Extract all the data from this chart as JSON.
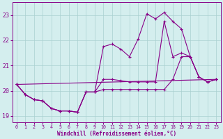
{
  "bg_color": "#d4eeee",
  "grid_color": "#aad0d0",
  "line_color": "#880088",
  "xlabel": "Windchill (Refroidissement éolien,°C)",
  "ylim": [
    18.75,
    23.5
  ],
  "xlim": [
    -0.5,
    23.5
  ],
  "yticks": [
    19,
    20,
    21,
    22,
    23
  ],
  "xticks": [
    0,
    1,
    2,
    3,
    4,
    5,
    6,
    7,
    8,
    9,
    10,
    11,
    12,
    13,
    14,
    15,
    16,
    17,
    18,
    19,
    20,
    21,
    22,
    23
  ],
  "line1_x": [
    0,
    1,
    2,
    3,
    4,
    5,
    6,
    7,
    8,
    9,
    10,
    11,
    12,
    13,
    14,
    15,
    16,
    17,
    18,
    19,
    20,
    21,
    22,
    23
  ],
  "line1_y": [
    20.25,
    19.85,
    19.65,
    19.6,
    19.3,
    19.2,
    19.2,
    19.15,
    19.95,
    19.95,
    21.75,
    21.85,
    21.65,
    21.35,
    22.05,
    23.05,
    22.85,
    23.1,
    22.75,
    22.45,
    21.35,
    20.55,
    20.35,
    20.45
  ],
  "line2_x": [
    0,
    1,
    2,
    3,
    4,
    5,
    6,
    7,
    8,
    9,
    10,
    11,
    12,
    13,
    14,
    15,
    16,
    17,
    18,
    19,
    20,
    21,
    22,
    23
  ],
  "line2_y": [
    20.25,
    19.85,
    19.65,
    19.6,
    19.3,
    19.2,
    19.2,
    19.15,
    19.95,
    19.95,
    20.45,
    20.45,
    20.4,
    20.35,
    20.35,
    20.35,
    20.35,
    22.75,
    21.35,
    21.5,
    21.35,
    20.55,
    20.35,
    20.45
  ],
  "line3_x": [
    0,
    1,
    2,
    3,
    4,
    5,
    6,
    7,
    8,
    9,
    10,
    11,
    12,
    13,
    14,
    15,
    16,
    17,
    18,
    19,
    20,
    21,
    22,
    23
  ],
  "line3_y": [
    20.25,
    19.85,
    19.65,
    19.6,
    19.3,
    19.2,
    19.2,
    19.15,
    19.95,
    19.95,
    20.05,
    20.05,
    20.05,
    20.05,
    20.05,
    20.05,
    20.05,
    20.05,
    20.45,
    21.35,
    21.35,
    20.55,
    20.35,
    20.45
  ],
  "line4_x": [
    0,
    23
  ],
  "line4_y": [
    20.25,
    20.45
  ]
}
